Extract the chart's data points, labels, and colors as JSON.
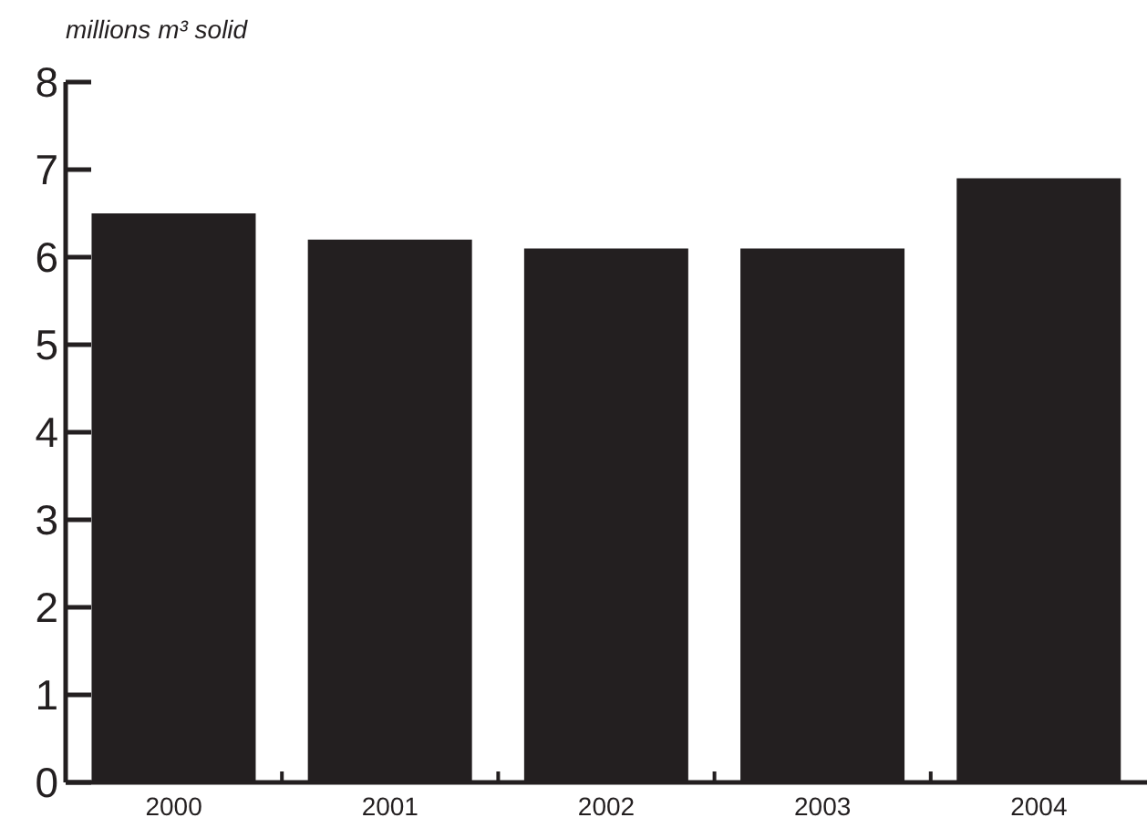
{
  "chart_data": {
    "type": "bar",
    "ylabel": "millions m³ solid",
    "categories": [
      "2000",
      "2001",
      "2002",
      "2003",
      "2004"
    ],
    "values": [
      6.5,
      6.2,
      6.1,
      6.1,
      6.9
    ],
    "color": "#231f20",
    "ylim": [
      0,
      8
    ],
    "yticks": [
      0,
      1,
      2,
      3,
      4,
      5,
      6,
      7,
      8
    ],
    "grid": false,
    "legend": false
  }
}
